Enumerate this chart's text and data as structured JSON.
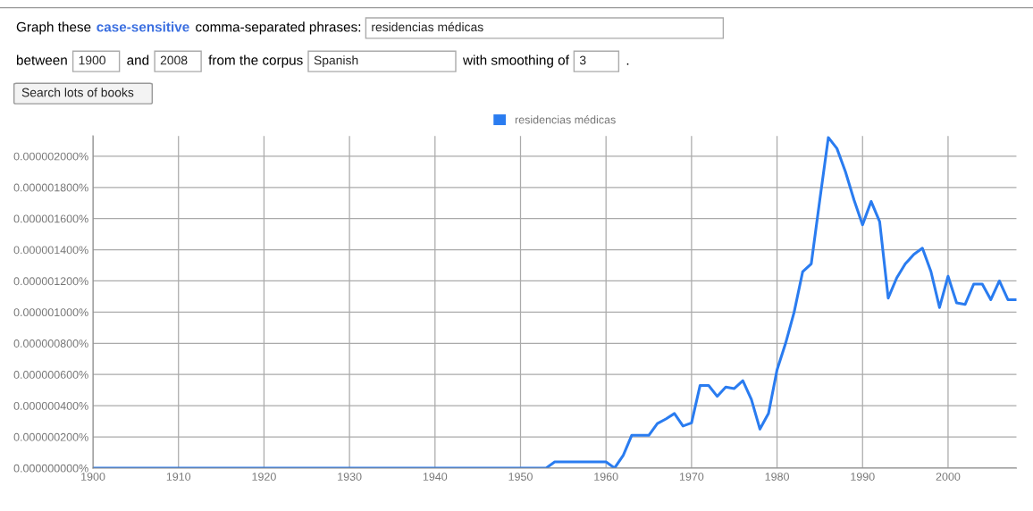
{
  "chart_data": {
    "type": "line",
    "annotations": [
      "Graph these",
      "case-sensitive",
      "comma-separated phrases:",
      "residencias médicas",
      "between",
      "1900",
      "and",
      "2008",
      "from the corpus",
      "Spanish",
      "with smoothing of",
      "3",
      ".",
      "Search lots of books"
    ],
    "series": [
      {
        "name": "residencias médicas",
        "color": "#2a7cf0",
        "x": [
          1900,
          1953,
          1954,
          1960,
          1961,
          1962,
          1963,
          1964,
          1965,
          1966,
          1967,
          1968,
          1969,
          1970,
          1971,
          1972,
          1973,
          1974,
          1975,
          1976,
          1977,
          1978,
          1979,
          1980,
          1981,
          1982,
          1983,
          1984,
          1985,
          1986,
          1987,
          1988,
          1989,
          1990,
          1991,
          1992,
          1993,
          1994,
          1995,
          1996,
          1997,
          1998,
          1999,
          2000,
          2001,
          2002,
          2003,
          2004,
          2005,
          2006,
          2007,
          2008
        ],
        "values": [
          0,
          0,
          4e-08,
          4e-08,
          0,
          8e-08,
          2.1e-07,
          2.1e-07,
          2.1e-07,
          2.85e-07,
          3.15e-07,
          3.5e-07,
          2.7e-07,
          2.9e-07,
          5.3e-07,
          5.3e-07,
          4.6e-07,
          5.2e-07,
          5.1e-07,
          5.6e-07,
          4.4e-07,
          2.5e-07,
          3.5e-07,
          6.3e-07,
          8e-07,
          1e-06,
          1.26e-06,
          1.31e-06,
          1.72e-06,
          2.12e-06,
          2.05e-06,
          1.9e-06,
          1.72e-06,
          1.56e-06,
          1.71e-06,
          1.58e-06,
          1.09e-06,
          1.22e-06,
          1.31e-06,
          1.37e-06,
          1.41e-06,
          1.26e-06,
          1.03e-06,
          1.23e-06,
          1.06e-06,
          1.05e-06,
          1.18e-06,
          1.18e-06,
          1.08e-06,
          1.2e-06,
          1.08e-06,
          1.08e-06
        ]
      }
    ],
    "xlim": [
      1900,
      2008
    ],
    "xticks": [
      1900,
      1910,
      1920,
      1930,
      1940,
      1950,
      1960,
      1970,
      1980,
      1990,
      2000
    ],
    "ylim": [
      0,
      2.13e-06
    ],
    "yticks": [
      {
        "value": 0,
        "label": "0.000000000%"
      },
      {
        "value": 2e-07,
        "label": "0.000000200%"
      },
      {
        "value": 4e-07,
        "label": "0.000000400%"
      },
      {
        "value": 6e-07,
        "label": "0.000000600%"
      },
      {
        "value": 8e-07,
        "label": "0.000000800%"
      },
      {
        "value": 1e-06,
        "label": "0.000001000%"
      },
      {
        "value": 1.2e-06,
        "label": "0.000001200%"
      },
      {
        "value": 1.4e-06,
        "label": "0.000001400%"
      },
      {
        "value": 1.6e-06,
        "label": "0.000001600%"
      },
      {
        "value": 1.8e-06,
        "label": "0.000001800%"
      },
      {
        "value": 2e-06,
        "label": "0.000002000%"
      }
    ],
    "grid": true,
    "legend": "top",
    "marker": "none",
    "line_style": "solid"
  }
}
